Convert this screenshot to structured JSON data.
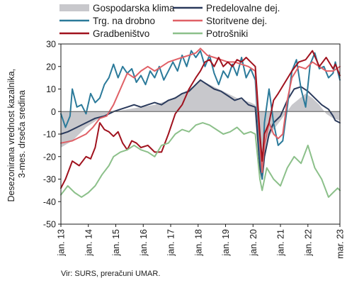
{
  "chart_data": {
    "type": "line",
    "ylabel": "Desezonirana vrednost kazalnika, 3-mes. drseča sredina",
    "ylim": [
      -50,
      30
    ],
    "yticks": [
      30,
      20,
      10,
      0,
      -10,
      -20,
      -30,
      -40,
      -50
    ],
    "xlim": [
      "2013-01",
      "2023-03"
    ],
    "xticks": [
      "jan. 13",
      "jan. 14",
      "jan. 15",
      "jan. 16",
      "jan. 17",
      "jan. 18",
      "jan. 19",
      "jan. 20",
      "jan. 21",
      "jan. 22",
      "mar. 23"
    ],
    "grid": false,
    "legend_position": "top",
    "series": [
      {
        "name": "Gospodarska klima",
        "style": "area",
        "color": "#c8c8cc",
        "points": [
          [
            "2013-01",
            -16
          ],
          [
            "2013-06",
            -13
          ],
          [
            "2013-12",
            -7
          ],
          [
            "2014-06",
            -3
          ],
          [
            "2014-12",
            0
          ],
          [
            "2015-06",
            1
          ],
          [
            "2015-12",
            2
          ],
          [
            "2016-06",
            3
          ],
          [
            "2016-12",
            5
          ],
          [
            "2017-06",
            8
          ],
          [
            "2017-12",
            12
          ],
          [
            "2018-02",
            14
          ],
          [
            "2018-06",
            12
          ],
          [
            "2018-12",
            9
          ],
          [
            "2019-06",
            6
          ],
          [
            "2019-12",
            4
          ],
          [
            "2020-02",
            3
          ],
          [
            "2020-04",
            -26
          ],
          [
            "2020-05",
            -28
          ],
          [
            "2020-07",
            -13
          ],
          [
            "2020-10",
            -8
          ],
          [
            "2021-01",
            -4
          ],
          [
            "2021-06",
            3
          ],
          [
            "2021-12",
            8
          ],
          [
            "2022-03",
            6
          ],
          [
            "2022-06",
            3
          ],
          [
            "2022-09",
            -1
          ],
          [
            "2022-12",
            -3
          ],
          [
            "2023-03",
            -4
          ]
        ]
      },
      {
        "name": "Predelovalne dej.",
        "style": "line",
        "color": "#2a3a5c",
        "points": [
          [
            "2013-01",
            -10
          ],
          [
            "2013-04",
            -9
          ],
          [
            "2013-08",
            -7
          ],
          [
            "2013-12",
            -5
          ],
          [
            "2014-04",
            -3
          ],
          [
            "2014-08",
            -2
          ],
          [
            "2014-12",
            0
          ],
          [
            "2015-03",
            1
          ],
          [
            "2015-06",
            2
          ],
          [
            "2015-09",
            3
          ],
          [
            "2015-12",
            2
          ],
          [
            "2016-03",
            3
          ],
          [
            "2016-06",
            4
          ],
          [
            "2016-09",
            3
          ],
          [
            "2016-12",
            5
          ],
          [
            "2017-03",
            6
          ],
          [
            "2017-06",
            8
          ],
          [
            "2017-09",
            9
          ],
          [
            "2017-12",
            12
          ],
          [
            "2018-02",
            14
          ],
          [
            "2018-05",
            12
          ],
          [
            "2018-08",
            10
          ],
          [
            "2018-11",
            9
          ],
          [
            "2019-02",
            7
          ],
          [
            "2019-05",
            5
          ],
          [
            "2019-08",
            6
          ],
          [
            "2019-11",
            3
          ],
          [
            "2020-02",
            2
          ],
          [
            "2020-04",
            -25
          ],
          [
            "2020-05",
            -30
          ],
          [
            "2020-06",
            -20
          ],
          [
            "2020-08",
            -10
          ],
          [
            "2020-10",
            -5
          ],
          [
            "2021-01",
            -2
          ],
          [
            "2021-04",
            5
          ],
          [
            "2021-07",
            10
          ],
          [
            "2021-10",
            11
          ],
          [
            "2022-01",
            9
          ],
          [
            "2022-04",
            6
          ],
          [
            "2022-07",
            3
          ],
          [
            "2022-10",
            1
          ],
          [
            "2022-12",
            -2
          ],
          [
            "2023-01",
            -4
          ],
          [
            "2023-03",
            -5
          ]
        ]
      },
      {
        "name": "Trg. na drobno",
        "style": "line",
        "color": "#2b7a9a",
        "points": [
          [
            "2013-01",
            -1
          ],
          [
            "2013-03",
            -7
          ],
          [
            "2013-05",
            -2
          ],
          [
            "2013-06",
            10
          ],
          [
            "2013-08",
            2
          ],
          [
            "2013-10",
            3
          ],
          [
            "2013-12",
            -1
          ],
          [
            "2014-02",
            8
          ],
          [
            "2014-04",
            4
          ],
          [
            "2014-06",
            6
          ],
          [
            "2014-08",
            12
          ],
          [
            "2014-10",
            15
          ],
          [
            "2014-12",
            21
          ],
          [
            "2015-02",
            15
          ],
          [
            "2015-04",
            20
          ],
          [
            "2015-06",
            17
          ],
          [
            "2015-08",
            19
          ],
          [
            "2015-10",
            13
          ],
          [
            "2015-12",
            16
          ],
          [
            "2016-02",
            12
          ],
          [
            "2016-04",
            18
          ],
          [
            "2016-06",
            15
          ],
          [
            "2016-08",
            20
          ],
          [
            "2016-10",
            14
          ],
          [
            "2016-12",
            18
          ],
          [
            "2017-02",
            22
          ],
          [
            "2017-04",
            18
          ],
          [
            "2017-06",
            25
          ],
          [
            "2017-08",
            20
          ],
          [
            "2017-10",
            27
          ],
          [
            "2017-12",
            24
          ],
          [
            "2018-02",
            27
          ],
          [
            "2018-04",
            20
          ],
          [
            "2018-06",
            25
          ],
          [
            "2018-08",
            17
          ],
          [
            "2018-10",
            12
          ],
          [
            "2018-12",
            18
          ],
          [
            "2019-02",
            15
          ],
          [
            "2019-04",
            21
          ],
          [
            "2019-06",
            16
          ],
          [
            "2019-08",
            24
          ],
          [
            "2019-10",
            15
          ],
          [
            "2019-12",
            19
          ],
          [
            "2020-02",
            14
          ],
          [
            "2020-04",
            -20
          ],
          [
            "2020-05",
            -30
          ],
          [
            "2020-06",
            -5
          ],
          [
            "2020-08",
            10
          ],
          [
            "2020-10",
            -5
          ],
          [
            "2020-12",
            -15
          ],
          [
            "2021-02",
            -13
          ],
          [
            "2021-04",
            2
          ],
          [
            "2021-06",
            18
          ],
          [
            "2021-08",
            23
          ],
          [
            "2021-10",
            10
          ],
          [
            "2021-12",
            2
          ],
          [
            "2022-02",
            21
          ],
          [
            "2022-04",
            26
          ],
          [
            "2022-06",
            19
          ],
          [
            "2022-08",
            20
          ],
          [
            "2022-10",
            15
          ],
          [
            "2022-12",
            17
          ],
          [
            "2023-01",
            22
          ],
          [
            "2023-03",
            14
          ]
        ]
      },
      {
        "name": "Storitvene dej.",
        "style": "line",
        "color": "#e06066",
        "points": [
          [
            "2013-01",
            -14
          ],
          [
            "2013-06",
            -13
          ],
          [
            "2013-12",
            -10
          ],
          [
            "2014-03",
            -7
          ],
          [
            "2014-06",
            -3
          ],
          [
            "2014-09",
            -2
          ],
          [
            "2014-12",
            3
          ],
          [
            "2015-03",
            10
          ],
          [
            "2015-06",
            17
          ],
          [
            "2015-09",
            15
          ],
          [
            "2015-12",
            18
          ],
          [
            "2016-03",
            20
          ],
          [
            "2016-06",
            18
          ],
          [
            "2016-09",
            20
          ],
          [
            "2016-12",
            22
          ],
          [
            "2017-03",
            23
          ],
          [
            "2017-06",
            24
          ],
          [
            "2017-09",
            25
          ],
          [
            "2017-12",
            26
          ],
          [
            "2018-02",
            28
          ],
          [
            "2018-05",
            25
          ],
          [
            "2018-08",
            24
          ],
          [
            "2018-11",
            23
          ],
          [
            "2019-02",
            22
          ],
          [
            "2019-05",
            22
          ],
          [
            "2019-08",
            21
          ],
          [
            "2019-11",
            20
          ],
          [
            "2020-02",
            18
          ],
          [
            "2020-04",
            -15
          ],
          [
            "2020-05",
            -27
          ],
          [
            "2020-06",
            -15
          ],
          [
            "2020-08",
            -5
          ],
          [
            "2020-10",
            -10
          ],
          [
            "2020-12",
            -12
          ],
          [
            "2021-02",
            -10
          ],
          [
            "2021-04",
            5
          ],
          [
            "2021-06",
            15
          ],
          [
            "2021-09",
            20
          ],
          [
            "2021-12",
            19
          ],
          [
            "2022-03",
            22
          ],
          [
            "2022-06",
            20
          ],
          [
            "2022-09",
            18
          ],
          [
            "2022-12",
            18
          ],
          [
            "2023-03",
            20
          ]
        ]
      },
      {
        "name": "Gradbeništvo",
        "style": "line",
        "color": "#a0121e",
        "points": [
          [
            "2013-01",
            -34
          ],
          [
            "2013-03",
            -30
          ],
          [
            "2013-06",
            -22
          ],
          [
            "2013-09",
            -24
          ],
          [
            "2013-12",
            -20
          ],
          [
            "2014-02",
            -21
          ],
          [
            "2014-04",
            -16
          ],
          [
            "2014-06",
            -5
          ],
          [
            "2014-08",
            -8
          ],
          [
            "2014-10",
            -9
          ],
          [
            "2014-12",
            -11
          ],
          [
            "2015-02",
            -9
          ],
          [
            "2015-04",
            -14
          ],
          [
            "2015-06",
            -17
          ],
          [
            "2015-08",
            -13
          ],
          [
            "2015-10",
            -14
          ],
          [
            "2015-12",
            -16
          ],
          [
            "2016-03",
            -15
          ],
          [
            "2016-06",
            -18
          ],
          [
            "2016-09",
            -18
          ],
          [
            "2016-12",
            -10
          ],
          [
            "2017-03",
            -1
          ],
          [
            "2017-06",
            3
          ],
          [
            "2017-09",
            10
          ],
          [
            "2017-12",
            15
          ],
          [
            "2018-02",
            18
          ],
          [
            "2018-04",
            22
          ],
          [
            "2018-06",
            23
          ],
          [
            "2018-08",
            20
          ],
          [
            "2018-10",
            24
          ],
          [
            "2018-12",
            20
          ],
          [
            "2019-02",
            22
          ],
          [
            "2019-04",
            20
          ],
          [
            "2019-06",
            23
          ],
          [
            "2019-08",
            22
          ],
          [
            "2019-10",
            24
          ],
          [
            "2019-12",
            22
          ],
          [
            "2020-02",
            20
          ],
          [
            "2020-04",
            -10
          ],
          [
            "2020-05",
            -22
          ],
          [
            "2020-06",
            -10
          ],
          [
            "2020-08",
            -5
          ],
          [
            "2020-10",
            5
          ],
          [
            "2020-12",
            8
          ],
          [
            "2021-03",
            13
          ],
          [
            "2021-06",
            18
          ],
          [
            "2021-09",
            22
          ],
          [
            "2021-12",
            23
          ],
          [
            "2022-03",
            27
          ],
          [
            "2022-06",
            20
          ],
          [
            "2022-09",
            24
          ],
          [
            "2022-12",
            19
          ],
          [
            "2023-01",
            21
          ],
          [
            "2023-03",
            16
          ]
        ]
      },
      {
        "name": "Potrošniki",
        "style": "line",
        "color": "#8cc08a",
        "points": [
          [
            "2013-01",
            -37
          ],
          [
            "2013-04",
            -33
          ],
          [
            "2013-07",
            -36
          ],
          [
            "2013-10",
            -38
          ],
          [
            "2014-01",
            -36
          ],
          [
            "2014-04",
            -33
          ],
          [
            "2014-07",
            -28
          ],
          [
            "2014-10",
            -24
          ],
          [
            "2014-12",
            -20
          ],
          [
            "2015-03",
            -18
          ],
          [
            "2015-06",
            -17
          ],
          [
            "2015-09",
            -15
          ],
          [
            "2015-12",
            -17
          ],
          [
            "2016-03",
            -18
          ],
          [
            "2016-06",
            -20
          ],
          [
            "2016-09",
            -15
          ],
          [
            "2016-12",
            -14
          ],
          [
            "2017-03",
            -10
          ],
          [
            "2017-06",
            -8
          ],
          [
            "2017-09",
            -9
          ],
          [
            "2017-12",
            -6
          ],
          [
            "2018-03",
            -5
          ],
          [
            "2018-06",
            -6
          ],
          [
            "2018-09",
            -8
          ],
          [
            "2018-12",
            -10
          ],
          [
            "2019-03",
            -9
          ],
          [
            "2019-06",
            -7
          ],
          [
            "2019-09",
            -10
          ],
          [
            "2019-12",
            -9
          ],
          [
            "2020-02",
            -10
          ],
          [
            "2020-04",
            -30
          ],
          [
            "2020-05",
            -35
          ],
          [
            "2020-07",
            -25
          ],
          [
            "2020-10",
            -30
          ],
          [
            "2021-01",
            -33
          ],
          [
            "2021-04",
            -25
          ],
          [
            "2021-07",
            -20
          ],
          [
            "2021-10",
            -23
          ],
          [
            "2022-01",
            -15
          ],
          [
            "2022-04",
            -25
          ],
          [
            "2022-07",
            -30
          ],
          [
            "2022-10",
            -38
          ],
          [
            "2022-12",
            -36
          ],
          [
            "2023-02",
            -34
          ],
          [
            "2023-03",
            -35
          ]
        ]
      }
    ]
  },
  "source": "Vir: SURS, preračuni UMAR."
}
